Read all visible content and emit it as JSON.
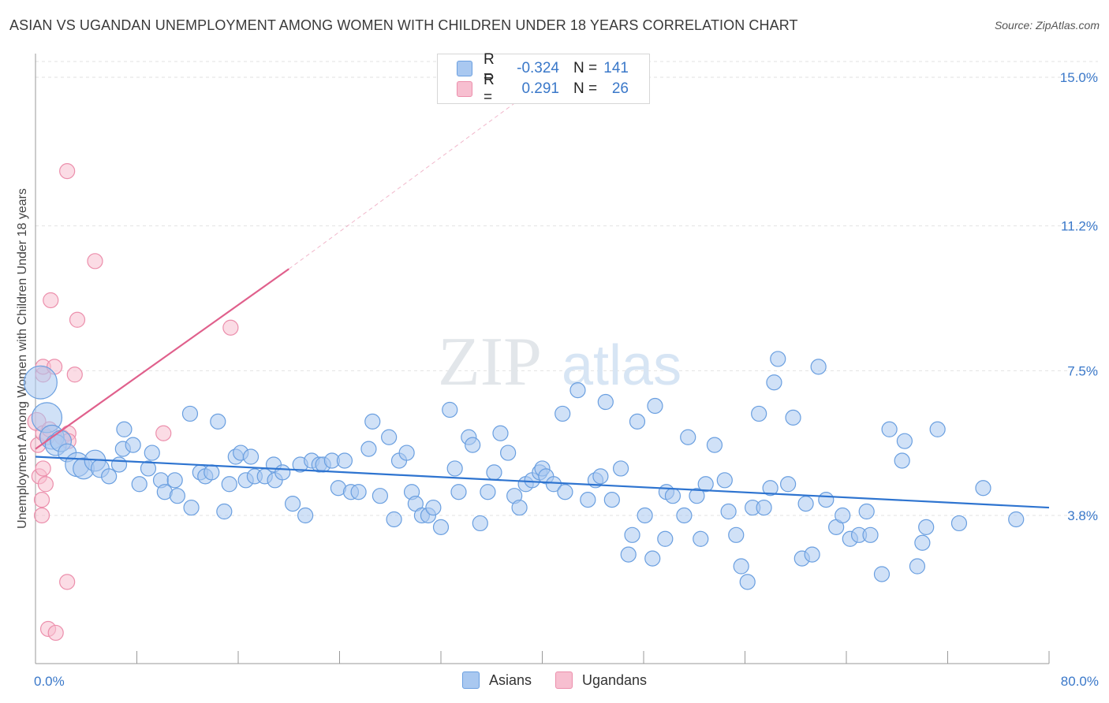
{
  "title": "ASIAN VS UGANDAN UNEMPLOYMENT AMONG WOMEN WITH CHILDREN UNDER 18 YEARS CORRELATION CHART",
  "source": "Source: ZipAtlas.com",
  "watermark": {
    "zip": "ZIP",
    "atlas": "atlas"
  },
  "colors": {
    "asian_fill": "#a9c8f0",
    "asian_stroke": "#6a9fe0",
    "asian_line": "#2e74d0",
    "ugandan_fill": "#f7bfd0",
    "ugandan_stroke": "#ec8fac",
    "ugandan_line": "#e0608c",
    "tick_text": "#3a78c9",
    "grid": "#e2e2e2"
  },
  "legend": {
    "rows": [
      {
        "r_label": "R =",
        "r_value": "-0.324",
        "n_label": "N =",
        "n_value": "141",
        "color": "#a9c8f0"
      },
      {
        "r_label": "R =",
        "r_value": "0.291",
        "n_label": "N =",
        "n_value": "26",
        "color": "#f7bfd0"
      }
    ]
  },
  "bottom_legend": {
    "asians": "Asians",
    "ugandans": "Ugandans"
  },
  "chart_data": {
    "type": "scatter",
    "title": "ASIAN VS UGANDAN UNEMPLOYMENT AMONG WOMEN WITH CHILDREN UNDER 18 YEARS CORRELATION CHART",
    "xlabel": "",
    "ylabel": "Unemployment Among Women with Children Under 18 years",
    "xlim": [
      0,
      80
    ],
    "ylim": [
      0,
      15.5
    ],
    "x_tick_labels": [
      "0.0%",
      "80.0%"
    ],
    "y_ticks": [
      3.8,
      7.5,
      11.2,
      15.0
    ],
    "y_tick_labels": [
      "3.8%",
      "7.5%",
      "11.2%",
      "15.0%"
    ],
    "grid": true,
    "legend_position": "top-center",
    "series": [
      {
        "name": "Asians",
        "r": -0.324,
        "n": 141,
        "trend": {
          "x": [
            0,
            80
          ],
          "y": [
            5.3,
            4.0
          ]
        },
        "points": [
          [
            0.4,
            7.2,
            2.2
          ],
          [
            0.9,
            6.3,
            2.0
          ],
          [
            1.3,
            5.8,
            1.6
          ],
          [
            1.6,
            5.6,
            1.4
          ],
          [
            2.0,
            5.7,
            1.4
          ],
          [
            2.5,
            5.4,
            1.2
          ],
          [
            3.3,
            5.1,
            1.6
          ],
          [
            3.8,
            5.0,
            1.4
          ],
          [
            4.7,
            5.2,
            1.4
          ],
          [
            5.1,
            5.0,
            1.2
          ],
          [
            5.8,
            4.8,
            1.0
          ],
          [
            6.6,
            5.1,
            1.0
          ],
          [
            6.9,
            5.5,
            1.0
          ],
          [
            7.0,
            6.0,
            1.0
          ],
          [
            7.7,
            5.6,
            1.0
          ],
          [
            8.2,
            4.6,
            1.0
          ],
          [
            9.2,
            5.4,
            1.0
          ],
          [
            8.9,
            5.0,
            1.0
          ],
          [
            9.9,
            4.7,
            1.0
          ],
          [
            10.2,
            4.4,
            1.0
          ],
          [
            11.0,
            4.7,
            1.0
          ],
          [
            11.2,
            4.3,
            1.0
          ],
          [
            12.2,
            6.4,
            1.0
          ],
          [
            12.3,
            4.0,
            1.0
          ],
          [
            13.0,
            4.9,
            1.0
          ],
          [
            13.4,
            4.8,
            1.0
          ],
          [
            13.9,
            4.9,
            1.0
          ],
          [
            14.4,
            6.2,
            1.0
          ],
          [
            14.9,
            3.9,
            1.0
          ],
          [
            15.3,
            4.6,
            1.0
          ],
          [
            15.8,
            5.3,
            1.0
          ],
          [
            16.2,
            5.4,
            1.0
          ],
          [
            16.6,
            4.7,
            1.0
          ],
          [
            17.0,
            5.3,
            1.0
          ],
          [
            17.3,
            4.8,
            1.0
          ],
          [
            18.1,
            4.8,
            1.0
          ],
          [
            18.9,
            4.7,
            1.0
          ],
          [
            18.8,
            5.1,
            1.0
          ],
          [
            19.5,
            4.9,
            1.0
          ],
          [
            20.3,
            4.1,
            1.0
          ],
          [
            20.9,
            5.1,
            1.0
          ],
          [
            21.3,
            3.8,
            1.0
          ],
          [
            21.8,
            5.2,
            1.0
          ],
          [
            22.4,
            5.1,
            1.0
          ],
          [
            22.7,
            5.1,
            1.0
          ],
          [
            23.4,
            5.2,
            1.0
          ],
          [
            23.9,
            4.5,
            1.0
          ],
          [
            24.4,
            5.2,
            1.0
          ],
          [
            24.9,
            4.4,
            1.0
          ],
          [
            25.5,
            4.4,
            1.0
          ],
          [
            26.3,
            5.5,
            1.0
          ],
          [
            26.6,
            6.2,
            1.0
          ],
          [
            27.2,
            4.3,
            1.0
          ],
          [
            27.9,
            5.8,
            1.0
          ],
          [
            28.3,
            3.7,
            1.0
          ],
          [
            28.7,
            5.2,
            1.0
          ],
          [
            29.3,
            5.4,
            1.0
          ],
          [
            29.7,
            4.4,
            1.0
          ],
          [
            30.0,
            4.1,
            1.0
          ],
          [
            30.5,
            3.8,
            1.0
          ],
          [
            31.0,
            3.8,
            1.0
          ],
          [
            31.4,
            4.0,
            1.0
          ],
          [
            32.0,
            3.5,
            1.0
          ],
          [
            32.7,
            6.5,
            1.0
          ],
          [
            33.1,
            5.0,
            1.0
          ],
          [
            33.4,
            4.4,
            1.0
          ],
          [
            34.2,
            5.8,
            1.0
          ],
          [
            34.5,
            5.6,
            1.0
          ],
          [
            35.1,
            3.6,
            1.0
          ],
          [
            35.7,
            4.4,
            1.0
          ],
          [
            36.2,
            4.9,
            1.0
          ],
          [
            36.7,
            5.9,
            1.0
          ],
          [
            37.3,
            5.4,
            1.0
          ],
          [
            37.8,
            4.3,
            1.0
          ],
          [
            38.2,
            4.0,
            1.0
          ],
          [
            38.7,
            4.6,
            1.0
          ],
          [
            39.2,
            4.7,
            1.0
          ],
          [
            39.8,
            4.9,
            1.0
          ],
          [
            40.0,
            5.0,
            1.0
          ],
          [
            40.3,
            4.8,
            1.0
          ],
          [
            40.9,
            4.6,
            1.0
          ],
          [
            41.6,
            6.4,
            1.0
          ],
          [
            41.8,
            4.4,
            1.0
          ],
          [
            42.8,
            7.0,
            1.0
          ],
          [
            43.6,
            4.2,
            1.0
          ],
          [
            44.2,
            4.7,
            1.0
          ],
          [
            44.6,
            4.8,
            1.0
          ],
          [
            45.0,
            6.7,
            1.0
          ],
          [
            45.5,
            4.2,
            1.0
          ],
          [
            46.2,
            5.0,
            1.0
          ],
          [
            46.8,
            2.8,
            1.0
          ],
          [
            47.1,
            3.3,
            1.0
          ],
          [
            47.5,
            6.2,
            1.0
          ],
          [
            48.1,
            3.8,
            1.0
          ],
          [
            48.7,
            2.7,
            1.0
          ],
          [
            48.9,
            6.6,
            1.0
          ],
          [
            49.7,
            3.2,
            1.0
          ],
          [
            49.8,
            4.4,
            1.0
          ],
          [
            50.3,
            4.3,
            1.0
          ],
          [
            51.2,
            3.8,
            1.0
          ],
          [
            51.5,
            5.8,
            1.0
          ],
          [
            52.2,
            4.3,
            1.0
          ],
          [
            52.5,
            3.2,
            1.0
          ],
          [
            52.9,
            4.6,
            1.0
          ],
          [
            53.6,
            5.6,
            1.0
          ],
          [
            54.4,
            4.7,
            1.0
          ],
          [
            54.7,
            3.9,
            1.0
          ],
          [
            55.3,
            3.3,
            1.0
          ],
          [
            55.7,
            2.5,
            1.0
          ],
          [
            56.2,
            2.1,
            1.0
          ],
          [
            56.6,
            4.0,
            1.0
          ],
          [
            57.1,
            6.4,
            1.0
          ],
          [
            57.5,
            4.0,
            1.0
          ],
          [
            58.0,
            4.5,
            1.0
          ],
          [
            58.3,
            7.2,
            1.0
          ],
          [
            58.6,
            7.8,
            1.0
          ],
          [
            59.4,
            4.6,
            1.0
          ],
          [
            59.8,
            6.3,
            1.0
          ],
          [
            60.5,
            2.7,
            1.0
          ],
          [
            60.8,
            4.1,
            1.0
          ],
          [
            61.3,
            2.8,
            1.0
          ],
          [
            61.8,
            7.6,
            1.0
          ],
          [
            62.4,
            4.2,
            1.0
          ],
          [
            63.2,
            3.5,
            1.0
          ],
          [
            63.7,
            3.8,
            1.0
          ],
          [
            64.3,
            3.2,
            1.0
          ],
          [
            65.0,
            3.3,
            1.0
          ],
          [
            65.6,
            3.9,
            1.0
          ],
          [
            65.9,
            3.3,
            1.0
          ],
          [
            66.8,
            2.3,
            1.0
          ],
          [
            67.4,
            6.0,
            1.0
          ],
          [
            68.4,
            5.2,
            1.0
          ],
          [
            68.6,
            5.7,
            1.0
          ],
          [
            69.6,
            2.5,
            1.0
          ],
          [
            70.0,
            3.1,
            1.0
          ],
          [
            70.3,
            3.5,
            1.0
          ],
          [
            71.2,
            6.0,
            1.0
          ],
          [
            72.9,
            3.6,
            1.0
          ],
          [
            74.8,
            4.5,
            1.0
          ],
          [
            77.4,
            3.7,
            1.0
          ]
        ]
      },
      {
        "name": "Ugandans",
        "r": 0.291,
        "n": 26,
        "trend": {
          "x": [
            0,
            20
          ],
          "y": [
            5.5,
            10.1
          ],
          "extended_x": [
            20,
            38.5
          ],
          "extended_y": [
            10.1,
            14.5
          ]
        },
        "points": [
          [
            0.1,
            6.2,
            1.2
          ],
          [
            0.2,
            5.6,
            1.0
          ],
          [
            0.3,
            4.8,
            1.0
          ],
          [
            0.5,
            4.2,
            1.0
          ],
          [
            0.5,
            3.8,
            1.0
          ],
          [
            0.6,
            7.4,
            1.0
          ],
          [
            0.6,
            7.6,
            1.0
          ],
          [
            0.6,
            5.9,
            1.0
          ],
          [
            0.6,
            5.0,
            1.0
          ],
          [
            0.8,
            4.6,
            1.0
          ],
          [
            0.9,
            5.8,
            1.0
          ],
          [
            1.1,
            6.0,
            1.0
          ],
          [
            1.2,
            9.3,
            1.0
          ],
          [
            1.5,
            7.6,
            1.0
          ],
          [
            2.1,
            5.8,
            1.0
          ],
          [
            2.6,
            5.9,
            1.0
          ],
          [
            2.6,
            5.7,
            1.0
          ],
          [
            3.1,
            7.4,
            1.0
          ],
          [
            3.3,
            8.8,
            1.0
          ],
          [
            2.5,
            12.6,
            1.0
          ],
          [
            4.7,
            10.3,
            1.0
          ],
          [
            10.1,
            5.9,
            1.0
          ],
          [
            15.4,
            8.6,
            1.0
          ],
          [
            2.5,
            2.1,
            1.0
          ],
          [
            1.0,
            0.9,
            1.0
          ],
          [
            1.6,
            0.8,
            1.0
          ]
        ]
      }
    ]
  }
}
